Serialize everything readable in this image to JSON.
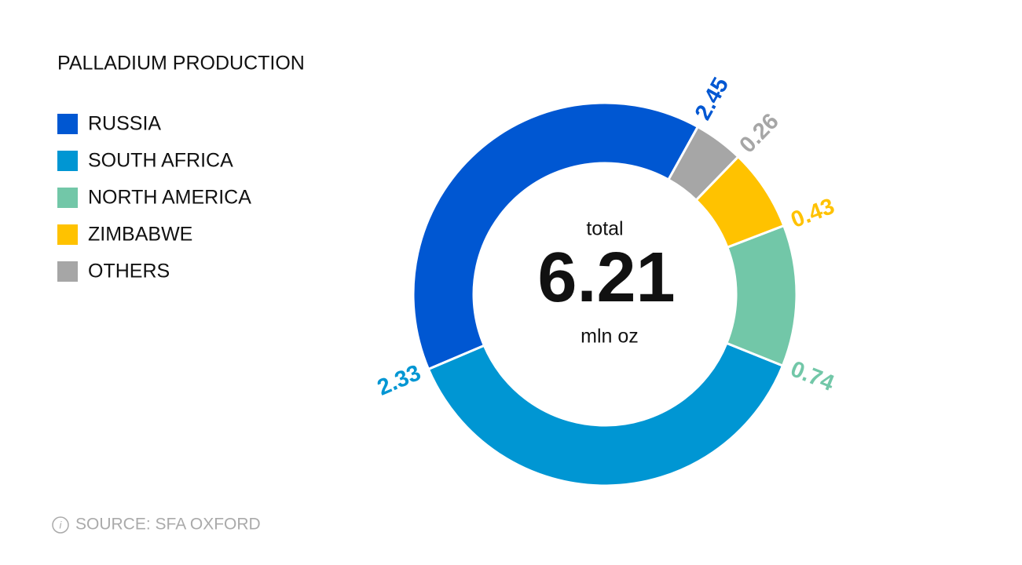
{
  "chart_data": {
    "type": "donut",
    "title": "PALLADIUM PRODUCTION",
    "categories": [
      "RUSSIA",
      "SOUTH AFRICA",
      "NORTH AMERICA",
      "ZIMBABWE",
      "OTHERS"
    ],
    "values": [
      2.45,
      2.33,
      0.74,
      0.43,
      0.26
    ],
    "colors": [
      "#0057d2",
      "#0096d3",
      "#72c7a8",
      "#ffc200",
      "#a6a6a6"
    ],
    "center_top": "total",
    "center_value": 6.21,
    "center_unit": "mln oz",
    "source": "SOURCE: SFA OXFORD"
  }
}
